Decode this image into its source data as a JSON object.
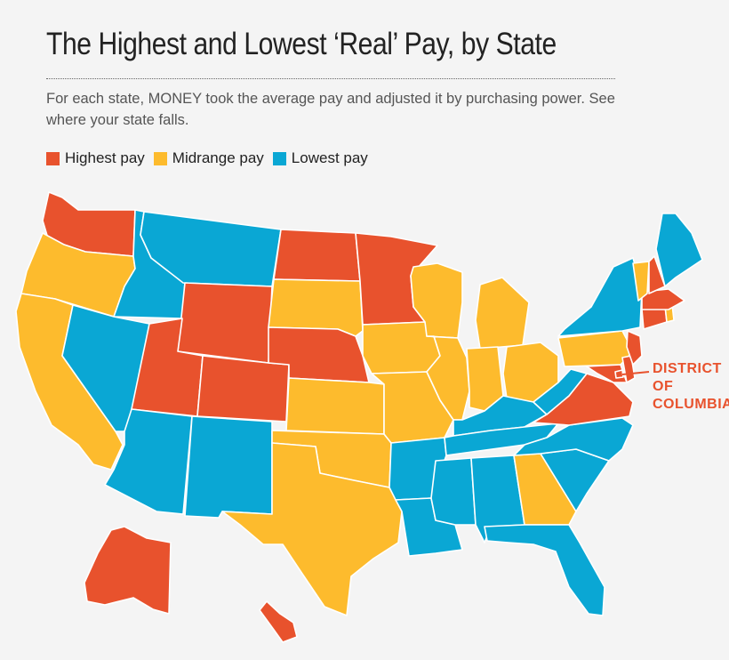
{
  "title": "The Highest and Lowest ‘Real’ Pay, by State",
  "subtitle": "For each state, MONEY took the average pay and adjusted it by purchasing power. See where your state falls.",
  "legend": [
    {
      "key": "high",
      "label": "Highest pay",
      "color": "#e8522d"
    },
    {
      "key": "mid",
      "label": "Midrange pay",
      "color": "#fdbb2d"
    },
    {
      "key": "low",
      "label": "Lowest pay",
      "color": "#0aa7d4"
    }
  ],
  "callout": {
    "text": "DISTRICT\nOF\nCOLUMBIA",
    "color": "#e8522d"
  },
  "states": [
    {
      "name": "Washington",
      "category": "high"
    },
    {
      "name": "Oregon",
      "category": "mid"
    },
    {
      "name": "California",
      "category": "mid"
    },
    {
      "name": "Idaho",
      "category": "low"
    },
    {
      "name": "Nevada",
      "category": "low"
    },
    {
      "name": "Montana",
      "category": "low"
    },
    {
      "name": "Wyoming",
      "category": "high"
    },
    {
      "name": "Utah",
      "category": "high"
    },
    {
      "name": "Colorado",
      "category": "high"
    },
    {
      "name": "Arizona",
      "category": "low"
    },
    {
      "name": "New Mexico",
      "category": "low"
    },
    {
      "name": "North Dakota",
      "category": "high"
    },
    {
      "name": "South Dakota",
      "category": "mid"
    },
    {
      "name": "Nebraska",
      "category": "high"
    },
    {
      "name": "Kansas",
      "category": "mid"
    },
    {
      "name": "Oklahoma",
      "category": "mid"
    },
    {
      "name": "Texas",
      "category": "mid"
    },
    {
      "name": "Minnesota",
      "category": "high"
    },
    {
      "name": "Iowa",
      "category": "mid"
    },
    {
      "name": "Missouri",
      "category": "mid"
    },
    {
      "name": "Arkansas",
      "category": "low"
    },
    {
      "name": "Louisiana",
      "category": "low"
    },
    {
      "name": "Wisconsin",
      "category": "mid"
    },
    {
      "name": "Illinois",
      "category": "mid"
    },
    {
      "name": "Michigan",
      "category": "mid"
    },
    {
      "name": "Indiana",
      "category": "mid"
    },
    {
      "name": "Ohio",
      "category": "mid"
    },
    {
      "name": "Kentucky",
      "category": "low"
    },
    {
      "name": "Tennessee",
      "category": "low"
    },
    {
      "name": "Mississippi",
      "category": "low"
    },
    {
      "name": "Alabama",
      "category": "low"
    },
    {
      "name": "Georgia",
      "category": "mid"
    },
    {
      "name": "Florida",
      "category": "low"
    },
    {
      "name": "South Carolina",
      "category": "low"
    },
    {
      "name": "North Carolina",
      "category": "low"
    },
    {
      "name": "Virginia",
      "category": "high"
    },
    {
      "name": "West Virginia",
      "category": "low"
    },
    {
      "name": "Pennsylvania",
      "category": "mid"
    },
    {
      "name": "New York",
      "category": "low"
    },
    {
      "name": "Maryland",
      "category": "high"
    },
    {
      "name": "Delaware",
      "category": "high"
    },
    {
      "name": "New Jersey",
      "category": "high"
    },
    {
      "name": "Connecticut",
      "category": "high"
    },
    {
      "name": "Rhode Island",
      "category": "mid"
    },
    {
      "name": "Massachusetts",
      "category": "high"
    },
    {
      "name": "Vermont",
      "category": "mid"
    },
    {
      "name": "New Hampshire",
      "category": "high"
    },
    {
      "name": "Maine",
      "category": "low"
    },
    {
      "name": "Alaska",
      "category": "high"
    },
    {
      "name": "Hawaii",
      "category": "high"
    },
    {
      "name": "District of Columbia",
      "category": "high"
    }
  ]
}
